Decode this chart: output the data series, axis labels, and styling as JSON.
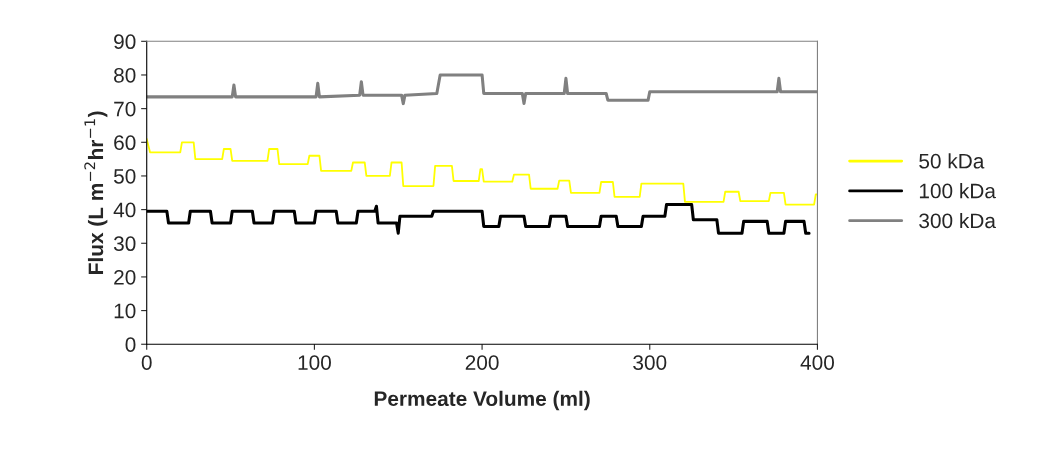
{
  "chart_data": {
    "type": "line",
    "xlabel": "Permeate Volume (ml)",
    "ylabel": "Flux (L m$^{−2}$hr$^{−1}$)",
    "xlim": [
      0,
      400
    ],
    "ylim": [
      0,
      90
    ],
    "xticks": [
      0,
      100,
      200,
      300,
      400
    ],
    "yticks": [
      0,
      10,
      20,
      30,
      40,
      50,
      60,
      70,
      80,
      90
    ],
    "grid": false,
    "legend": "right",
    "marker": "none",
    "line_style": "solid",
    "series": [
      {
        "name": "50 kDa",
        "color": "#ffff00",
        "x": [
          0,
          2,
          20,
          21,
          28,
          29,
          45,
          46,
          50,
          51,
          72,
          73,
          78,
          79,
          96,
          97,
          103,
          104,
          122,
          123,
          130,
          131,
          145,
          146,
          152,
          153,
          171,
          172,
          182,
          183,
          198,
          199,
          200,
          201,
          218,
          219,
          228,
          229,
          245,
          246,
          252,
          253,
          270,
          271,
          278,
          279,
          294,
          295,
          320,
          321,
          344,
          345,
          353,
          354,
          371,
          372,
          380,
          381,
          398,
          399,
          400
        ],
        "values": [
          61,
          57,
          57,
          60,
          60,
          55,
          55,
          58,
          58,
          54.5,
          54.5,
          58,
          58,
          53.5,
          53.5,
          56,
          56,
          51.5,
          51.5,
          54,
          54,
          50,
          50,
          54,
          54,
          47,
          47,
          53,
          53,
          48.5,
          48.5,
          52,
          52,
          48.3,
          48.3,
          50.4,
          50.4,
          46.2,
          46.2,
          48.6,
          48.6,
          45,
          45,
          48.2,
          48.2,
          43.8,
          43.8,
          47.7,
          47.7,
          42.3,
          42.3,
          45.3,
          45.3,
          42.5,
          42.5,
          45,
          45,
          41.5,
          41.5,
          44.5,
          44.5
        ]
      },
      {
        "name": "100 kDa",
        "color": "#000000",
        "x": [
          0,
          12,
          13,
          25,
          26,
          38,
          39,
          50,
          51,
          63,
          64,
          75,
          76,
          88,
          89,
          100,
          101,
          113,
          114,
          125,
          126,
          136,
          137,
          138,
          139,
          149,
          150,
          151,
          170,
          171,
          200,
          201,
          210,
          211,
          225,
          226,
          240,
          241,
          250,
          251,
          270,
          271,
          280,
          281,
          295,
          296,
          309,
          310,
          325,
          326,
          340,
          341,
          355,
          356,
          370,
          371,
          380,
          381,
          392,
          393,
          395
        ],
        "values": [
          39.5,
          39.5,
          36,
          36,
          39.5,
          39.5,
          36,
          36,
          39.5,
          39.5,
          36,
          36,
          39.5,
          39.5,
          36,
          36,
          39.5,
          39.5,
          36,
          36,
          39.5,
          39.5,
          41,
          36,
          36,
          36,
          33,
          38,
          38,
          39.5,
          39.5,
          35,
          35,
          38,
          38,
          35,
          35,
          38,
          38,
          35,
          35,
          38,
          38,
          35,
          35,
          38,
          38,
          41.5,
          41.5,
          37,
          37,
          33,
          33,
          36.5,
          36.5,
          33,
          33,
          36.5,
          36.5,
          33,
          33
        ]
      },
      {
        "name": "300 kDa",
        "color": "#808080",
        "x": [
          0,
          51,
          52,
          53,
          101,
          102,
          103,
          127,
          128,
          129,
          152,
          153,
          154,
          173,
          175,
          200,
          201,
          224,
          225,
          226,
          249,
          250,
          251,
          274,
          275,
          299,
          300,
          376,
          377,
          378,
          400
        ],
        "values": [
          73.5,
          73.5,
          77,
          73.5,
          73.5,
          77.5,
          73.5,
          74,
          78,
          74,
          74,
          71.5,
          74,
          74.5,
          80,
          80,
          74.5,
          74.5,
          71.5,
          74.5,
          74.5,
          79,
          74.5,
          74.5,
          72.5,
          72.5,
          75,
          75,
          79,
          75,
          75
        ]
      }
    ]
  }
}
